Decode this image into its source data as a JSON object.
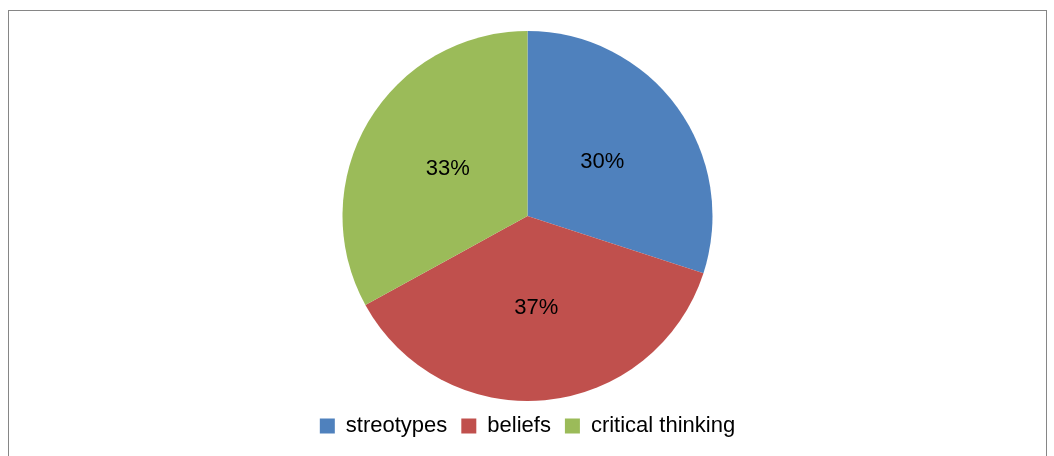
{
  "chart_data": {
    "type": "pie",
    "categories": [
      "streotypes",
      "beliefs",
      "critical thinking"
    ],
    "values": [
      30,
      37,
      33
    ],
    "colors": [
      "#4f81bd",
      "#c0504d",
      "#9bbb59"
    ],
    "value_labels": [
      "30%",
      "37%",
      "33%"
    ],
    "legend": "bottom"
  }
}
